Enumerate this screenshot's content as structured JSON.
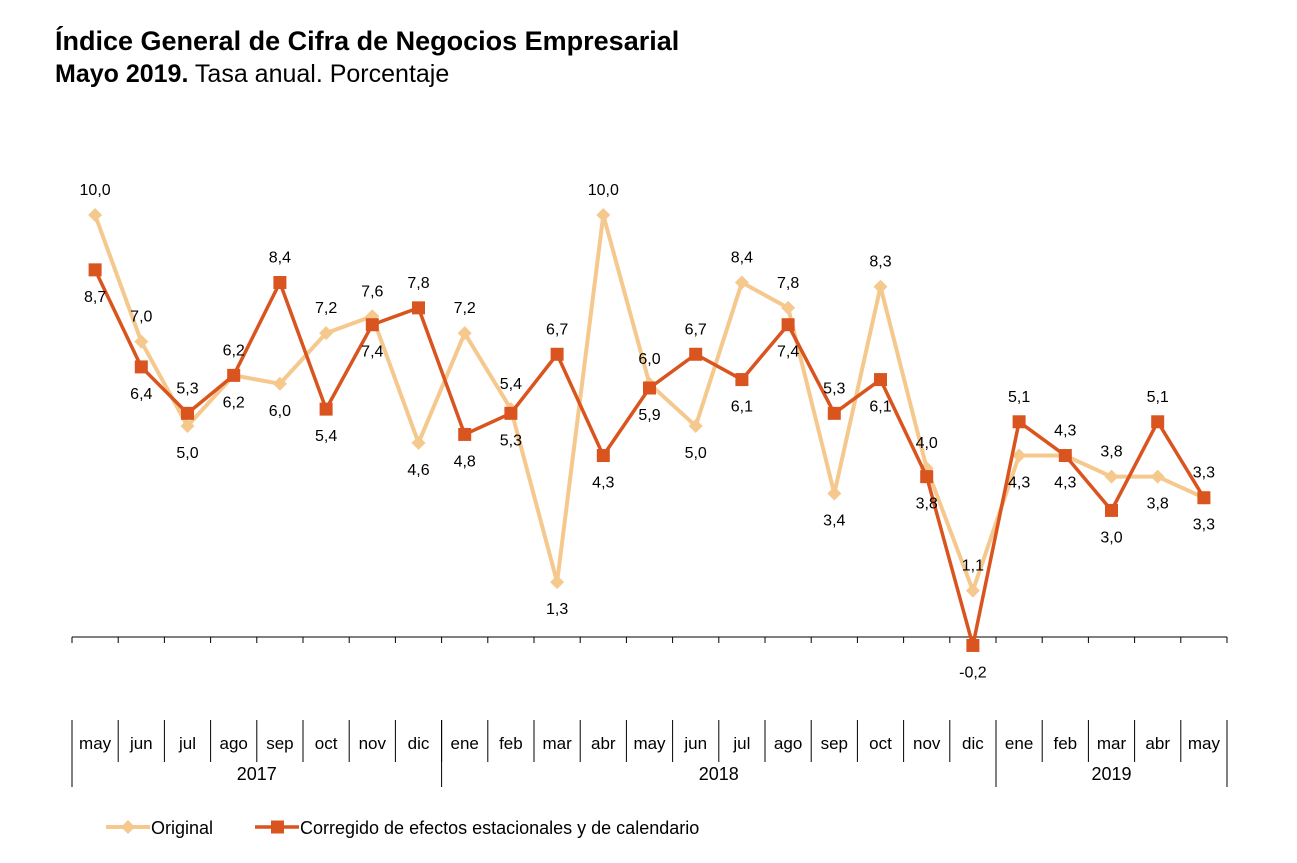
{
  "chart_data": {
    "type": "line",
    "title": "Índice General de Cifra de Negocios Empresarial",
    "subtitle_bold": "Mayo 2019.",
    "subtitle_rest": " Tasa anual. Porcentaje",
    "categories": [
      "may",
      "jun",
      "jul",
      "ago",
      "sep",
      "oct",
      "nov",
      "dic",
      "ene",
      "feb",
      "mar",
      "abr",
      "may",
      "jun",
      "jul",
      "ago",
      "sep",
      "oct",
      "nov",
      "dic",
      "ene",
      "feb",
      "mar",
      "abr",
      "may"
    ],
    "years": [
      {
        "label": "2017",
        "start": 0,
        "end": 7
      },
      {
        "label": "2018",
        "start": 8,
        "end": 19
      },
      {
        "label": "2019",
        "start": 20,
        "end": 24
      }
    ],
    "series": [
      {
        "name": "Original",
        "color": "#F5C88E",
        "marker": "diamond",
        "values": [
          10.0,
          7.0,
          5.0,
          6.2,
          6.0,
          7.2,
          7.6,
          4.6,
          7.2,
          5.4,
          1.3,
          10.0,
          6.0,
          5.0,
          8.4,
          7.8,
          3.4,
          8.3,
          4.0,
          1.1,
          4.3,
          4.3,
          3.8,
          3.8,
          3.3
        ],
        "labels": [
          "10,0",
          "7,0",
          "5,0",
          "6,2",
          "6,0",
          "7,2",
          "7,6",
          "4,6",
          "7,2",
          "5,4",
          "1,3",
          "10,0",
          "6,0",
          "5,0",
          "8,4",
          "7,8",
          "3,4",
          "8,3",
          "4,0",
          "1,1",
          "4,3",
          "4,3",
          "3,8",
          "3,8",
          "3,3"
        ]
      },
      {
        "name": "Corregido de efectos estacionales y de calendario",
        "color": "#D9541E",
        "marker": "square",
        "values": [
          8.7,
          6.4,
          5.3,
          6.2,
          8.4,
          5.4,
          7.4,
          7.8,
          4.8,
          5.3,
          6.7,
          4.3,
          5.9,
          6.7,
          6.1,
          7.4,
          5.3,
          6.1,
          3.8,
          -0.2,
          5.1,
          4.3,
          3.0,
          5.1,
          3.3
        ],
        "labels": [
          "8,7",
          "6,4",
          "5,3",
          "6,2",
          "8,4",
          "5,4",
          "7,4",
          "7,8",
          "4,8",
          "5,3",
          "6,7",
          "4,3",
          "5,9",
          "6,7",
          "6,1",
          "7,4",
          "5,3",
          "6,1",
          "3,8",
          "-0,2",
          "5,1",
          "4,3",
          "3,0",
          "5,1",
          "3,3"
        ]
      }
    ],
    "ylim": [
      -0.2,
      10.0
    ],
    "xlabel": "",
    "ylabel": "",
    "grid": false,
    "legend": "bottom-left"
  }
}
